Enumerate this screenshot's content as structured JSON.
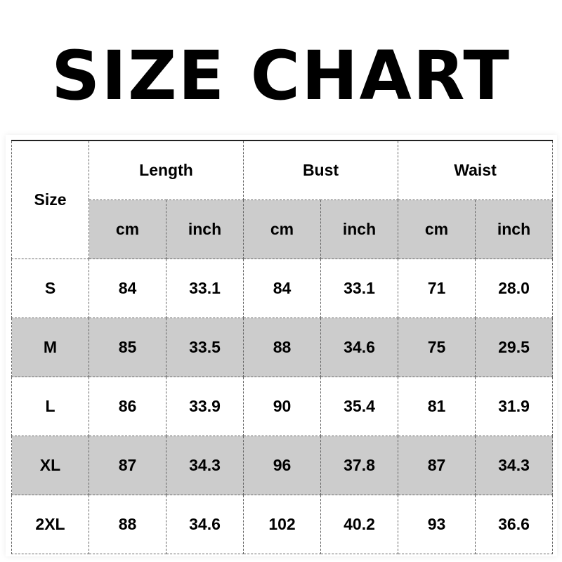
{
  "title": "SIZE CHART",
  "header": {
    "size": "Size",
    "groups": [
      "Length",
      "Bust",
      "Waist"
    ],
    "units": [
      "cm",
      "inch",
      "cm",
      "inch",
      "cm",
      "inch"
    ]
  },
  "rows": [
    {
      "size": "S",
      "values": [
        "84",
        "33.1",
        "84",
        "33.1",
        "71",
        "28.0"
      ]
    },
    {
      "size": "M",
      "values": [
        "85",
        "33.5",
        "88",
        "34.6",
        "75",
        "29.5"
      ]
    },
    {
      "size": "L",
      "values": [
        "86",
        "33.9",
        "90",
        "35.4",
        "81",
        "31.9"
      ]
    },
    {
      "size": "XL",
      "values": [
        "87",
        "34.3",
        "96",
        "37.8",
        "87",
        "34.3"
      ]
    },
    {
      "size": "2XL",
      "values": [
        "88",
        "34.6",
        "102",
        "40.2",
        "93",
        "36.6"
      ]
    }
  ],
  "colors": {
    "shade": "#cccccc",
    "text": "#000000"
  }
}
